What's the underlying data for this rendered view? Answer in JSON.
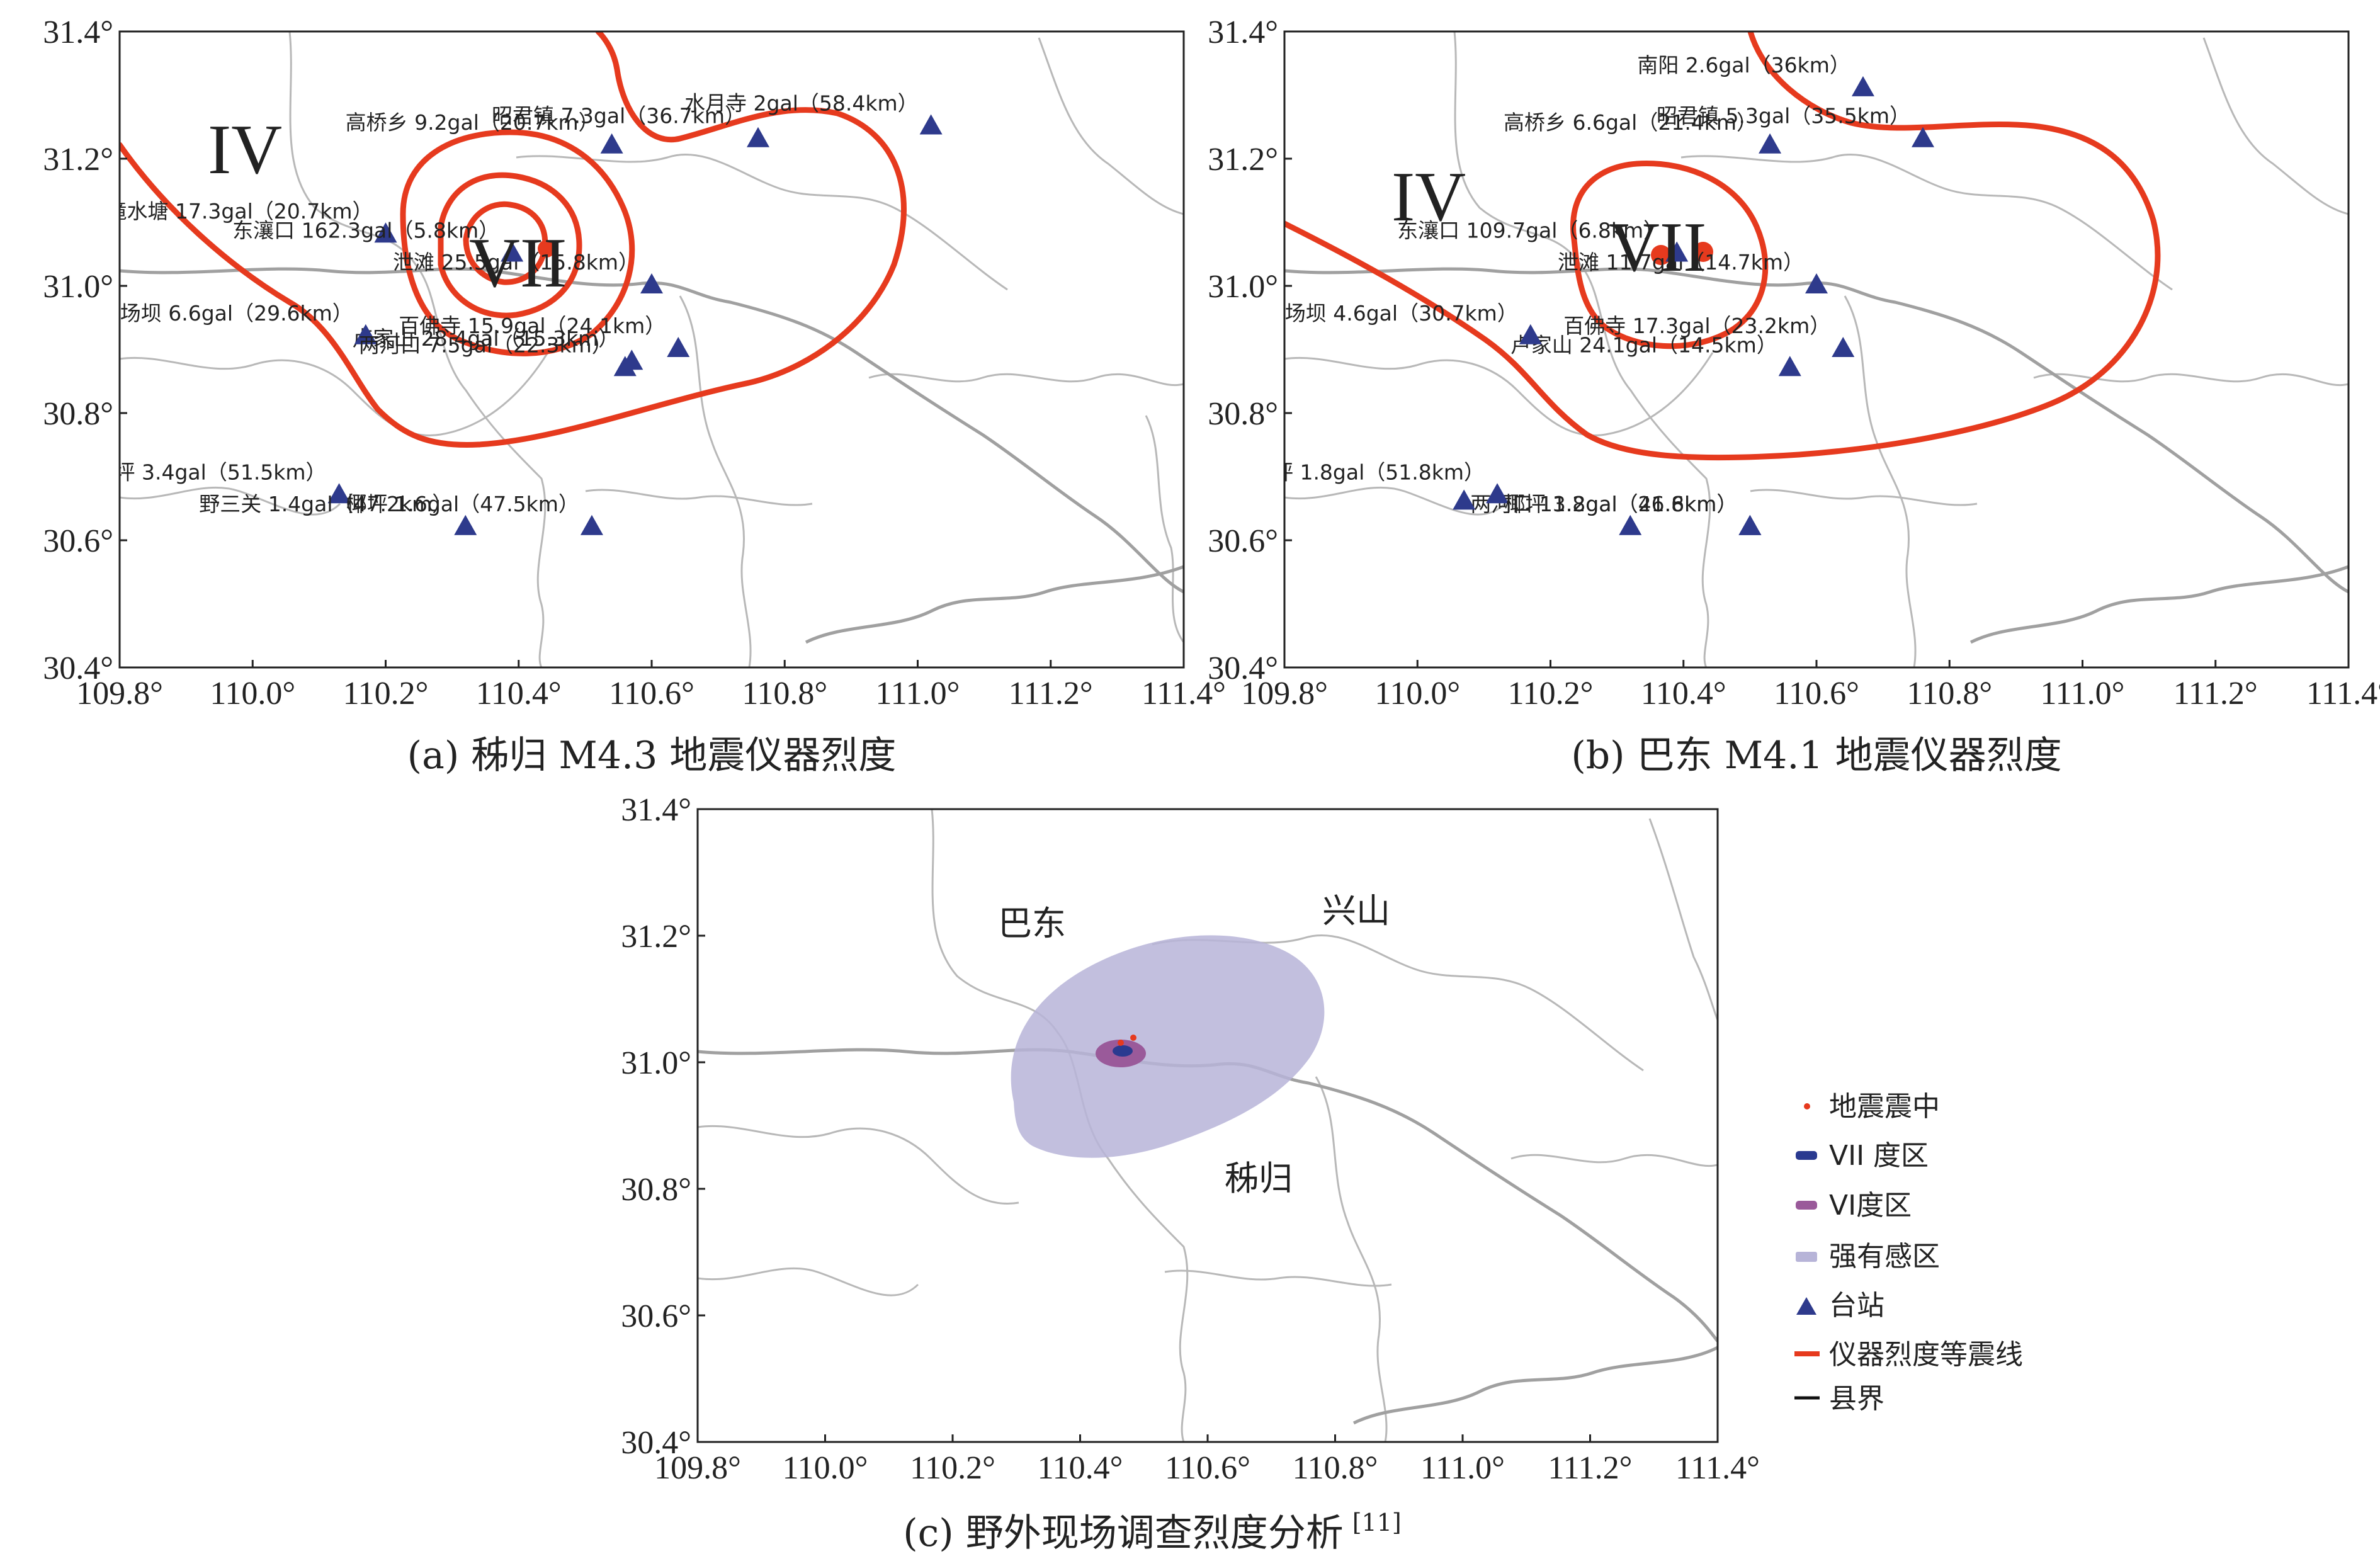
{
  "panels": {
    "a": {
      "caption": "(a) 秭归 M4.3 地震仪器烈度",
      "intensity_labels": [
        "IV",
        "VII"
      ],
      "stations": [
        {
          "name": "高桥乡",
          "pga": "9.2gal",
          "dist": "20.7km",
          "lon": 110.54,
          "lat": 31.22
        },
        {
          "name": "昭君镇",
          "pga": "7.3gal",
          "dist": "36.7km",
          "lon": 110.76,
          "lat": 31.23
        },
        {
          "name": "水月寺",
          "pga": "2gal",
          "dist": "58.4km",
          "lon": 111.02,
          "lat": 31.25
        },
        {
          "name": "滝水塘",
          "pga": "17.3gal",
          "dist": "20.7km",
          "lon": 110.2,
          "lat": 31.08
        },
        {
          "name": "泄滩",
          "pga": "25.5gal",
          "dist": "15.8km",
          "lon": 110.6,
          "lat": 31.0
        },
        {
          "name": "东瀼口",
          "pga": "162.3gal",
          "dist": "5.8km",
          "lon": 110.39,
          "lat": 31.05
        },
        {
          "name": "卢家山",
          "pga": "28.4gal",
          "dist": "15.3km",
          "lon": 110.57,
          "lat": 30.88
        },
        {
          "name": "百佛寺",
          "pga": "15.9gal",
          "dist": "24.1km",
          "lon": 110.64,
          "lat": 30.9
        },
        {
          "name": "教场坝",
          "pga": "6.6gal",
          "dist": "29.6km",
          "lon": 110.17,
          "lat": 30.92
        },
        {
          "name": "两河口",
          "pga": "7.5gal",
          "dist": "22.3km",
          "lon": 110.56,
          "lat": 30.87
        },
        {
          "name": "大支坪",
          "pga": "3.4gal",
          "dist": "51.5km",
          "lon": 110.13,
          "lat": 30.67
        },
        {
          "name": "野三关",
          "pga": "1.4gal",
          "dist": "47.2km",
          "lon": 110.32,
          "lat": 30.62
        },
        {
          "name": "椰坪",
          "pga": "1.6gal",
          "dist": "47.5km",
          "lon": 110.51,
          "lat": 30.62
        }
      ]
    },
    "b": {
      "caption": "(b) 巴东 M4.1 地震仪器烈度",
      "intensity_labels": [
        "IV",
        "VII"
      ],
      "stations": [
        {
          "name": "南阳",
          "pga": "2.6gal",
          "dist": "36km",
          "lon": 110.67,
          "lat": 31.31
        },
        {
          "name": "高桥乡",
          "pga": "6.6gal",
          "dist": "21.4km",
          "lon": 110.53,
          "lat": 31.22
        },
        {
          "name": "昭君镇",
          "pga": "5.3gal",
          "dist": "35.5km",
          "lon": 110.76,
          "lat": 31.23
        },
        {
          "name": "泄滩",
          "pga": "11.7gal",
          "dist": "14.7km",
          "lon": 110.6,
          "lat": 31.0
        },
        {
          "name": "东瀼口",
          "pga": "109.7gal",
          "dist": "6.8km",
          "lon": 110.39,
          "lat": 31.05
        },
        {
          "name": "卢家山",
          "pga": "24.1gal",
          "dist": "14.5km",
          "lon": 110.56,
          "lat": 30.87
        },
        {
          "name": "百佛寺",
          "pga": "17.3gal",
          "dist": "23.2km",
          "lon": 110.64,
          "lat": 30.9
        },
        {
          "name": "教场坝",
          "pga": "4.6gal",
          "dist": "30.7km",
          "lon": 110.17,
          "lat": 30.92
        },
        {
          "name": "两河口",
          "pga": "13.8gal",
          "dist": "21.6km",
          "lon": 110.5,
          "lat": 30.62
        },
        {
          "name": "大支坪",
          "pga": "1.8gal",
          "dist": "51.8km",
          "lon": 110.12,
          "lat": 30.67
        },
        {
          "name": "",
          "pga": "",
          "dist": "",
          "lon": 110.07,
          "lat": 30.66
        },
        {
          "name": "",
          "pga": "",
          "dist": "",
          "lon": 110.32,
          "lat": 30.62
        },
        {
          "name": "椰坪",
          "pga": "1.2gal",
          "dist": "46.8km",
          "lon": 110.5,
          "lat": 30.62
        }
      ]
    },
    "c": {
      "caption": "(c) 野外现场调查烈度分析",
      "caption_ref": "[11]",
      "places": [
        "巴东",
        "兴山",
        "秭归"
      ],
      "legend": [
        "地震震中",
        "VII 度区",
        "VI度区",
        "强有感区",
        "台站",
        "仪器烈度等震线",
        "县界"
      ]
    }
  },
  "axes": {
    "x_ticks": [
      "109.8°",
      "110.0°",
      "110.2°",
      "110.4°",
      "110.6°",
      "110.8°",
      "111.0°",
      "111.2°",
      "111.4°"
    ],
    "y_ticks": [
      "31.4°",
      "31.2°",
      "31.0°",
      "30.8°",
      "30.6°",
      "30.4°"
    ]
  },
  "colors": {
    "isoline": "#e63a1e",
    "station": "#2e3a8c",
    "epicenter": "#e63a1e",
    "zone7": "#2a3a90",
    "zone6": "#9a5a9a",
    "felt": "#b7b4d8"
  }
}
